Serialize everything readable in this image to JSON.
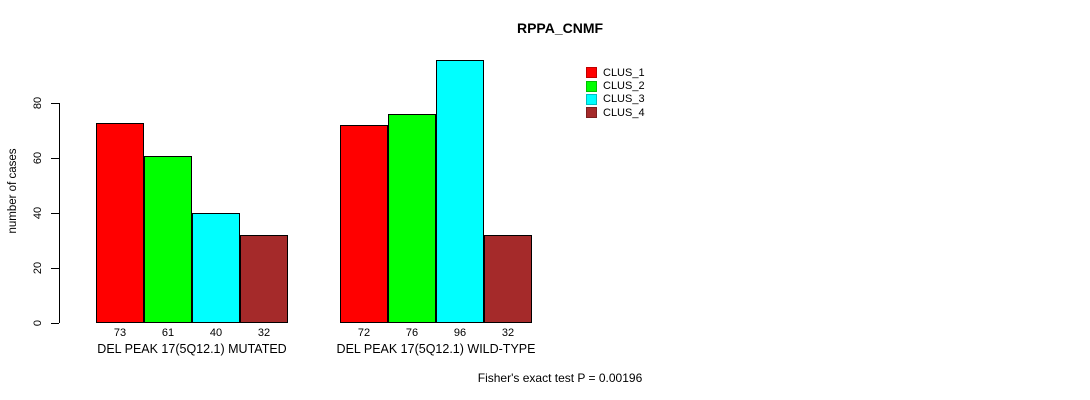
{
  "title": "RPPA_CNMF",
  "y_axis": {
    "label": "number of cases",
    "ticks": [
      0,
      20,
      40,
      60,
      80
    ]
  },
  "footer": "Fisher's exact test P = 0.00196",
  "chart_data": {
    "type": "bar",
    "title": "RPPA_CNMF",
    "xlabel": "",
    "ylabel": "number of cases",
    "ylim": [
      0,
      96
    ],
    "y_ticks": [
      0,
      20,
      40,
      60,
      80
    ],
    "grid": false,
    "legend_position": "top-right",
    "categories": [
      "DEL PEAK 17(5Q12.1) MUTATED",
      "DEL PEAK 17(5Q12.1) WILD-TYPE"
    ],
    "series": [
      {
        "name": "CLUS_1",
        "color": "#ff0000",
        "values": [
          73,
          72
        ]
      },
      {
        "name": "CLUS_2",
        "color": "#00ff00",
        "values": [
          61,
          76
        ]
      },
      {
        "name": "CLUS_3",
        "color": "#00ffff",
        "values": [
          40,
          96
        ]
      },
      {
        "name": "CLUS_4",
        "color": "#a52a2a",
        "values": [
          32,
          32
        ]
      }
    ],
    "bar_value_labels": [
      [
        73,
        61,
        40,
        32
      ],
      [
        72,
        76,
        96,
        32
      ]
    ],
    "annotation": "Fisher's exact test P = 0.00196"
  }
}
